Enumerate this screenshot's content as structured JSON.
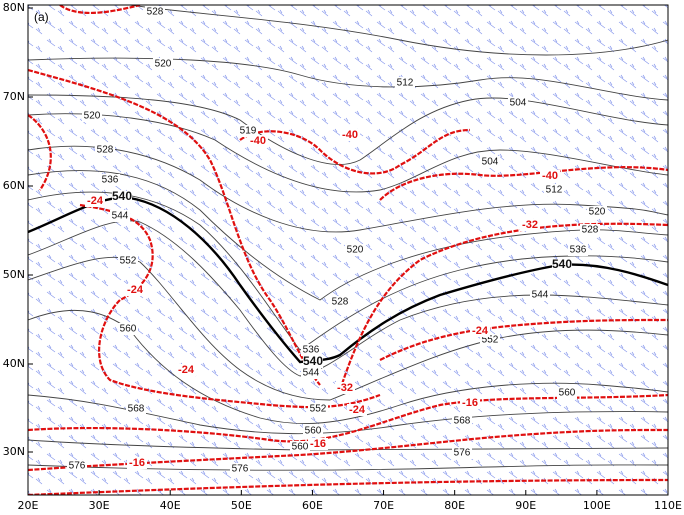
{
  "map": {
    "panel_label": "(a)",
    "lon_ticks": [
      "20E",
      "30E",
      "40E",
      "50E",
      "60E",
      "70E",
      "80E",
      "90E",
      "100E",
      "110E"
    ],
    "lat_ticks": [
      "30N",
      "40N",
      "50N",
      "60N",
      "70N",
      "80N"
    ],
    "height_labels": [
      "528",
      "520",
      "512",
      "504",
      "520",
      "528",
      "536",
      "540",
      "544",
      "552",
      "560",
      "568",
      "576",
      "576",
      "519",
      "504",
      "512",
      "520",
      "528",
      "536",
      "540",
      "544",
      "528",
      "536",
      "540",
      "544",
      "552",
      "560",
      "560",
      "568",
      "552",
      "560",
      "576",
      "520"
    ],
    "temperature_labels": [
      "-40",
      "-40",
      "-40",
      "-32",
      "-24",
      "-24",
      "-24",
      "-24",
      "-32",
      "-24",
      "-16",
      "-16",
      "-16"
    ]
  }
}
